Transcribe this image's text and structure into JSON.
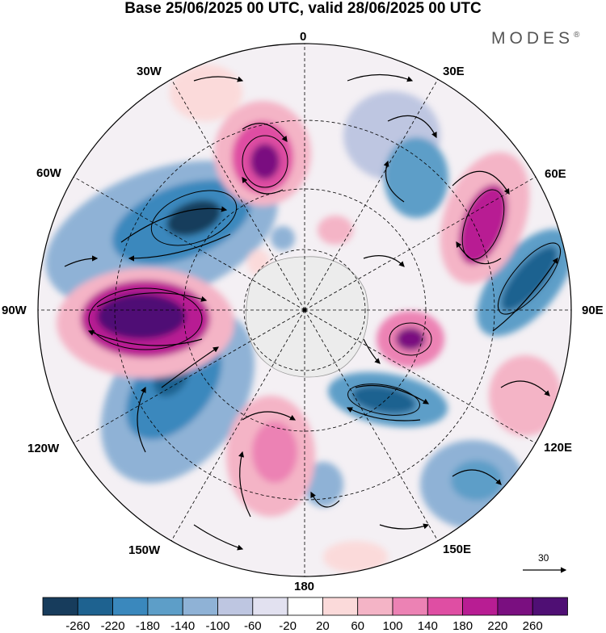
{
  "title": "Base 25/06/2025 00 UTC, valid 28/06/2025 00 UTC",
  "brand": "MODES",
  "brand_mark": "®",
  "lon_labels": [
    "0",
    "30E",
    "60E",
    "90E",
    "120E",
    "150E",
    "180",
    "150W",
    "120W",
    "90W",
    "60W",
    "30W"
  ],
  "reference_vector": "30",
  "colorbar": {
    "ticks": [
      "-260",
      "-220",
      "-180",
      "-140",
      "-100",
      "-60",
      "-20",
      "20",
      "60",
      "100",
      "140",
      "180",
      "220",
      "260"
    ],
    "colors": [
      "#173c5c",
      "#1e6290",
      "#3a88bd",
      "#5d9ec8",
      "#8fb2d6",
      "#bec6e1",
      "#e2e1f0",
      "#ffffff",
      "#fbdada",
      "#f4b4c6",
      "#ec82b4",
      "#df4ea3",
      "#b81d93",
      "#7a0f80",
      "#4f0f74"
    ]
  },
  "colors": {
    "land": "#dcdcdc",
    "antarctica": "#ececec",
    "grid": "#000000"
  }
}
